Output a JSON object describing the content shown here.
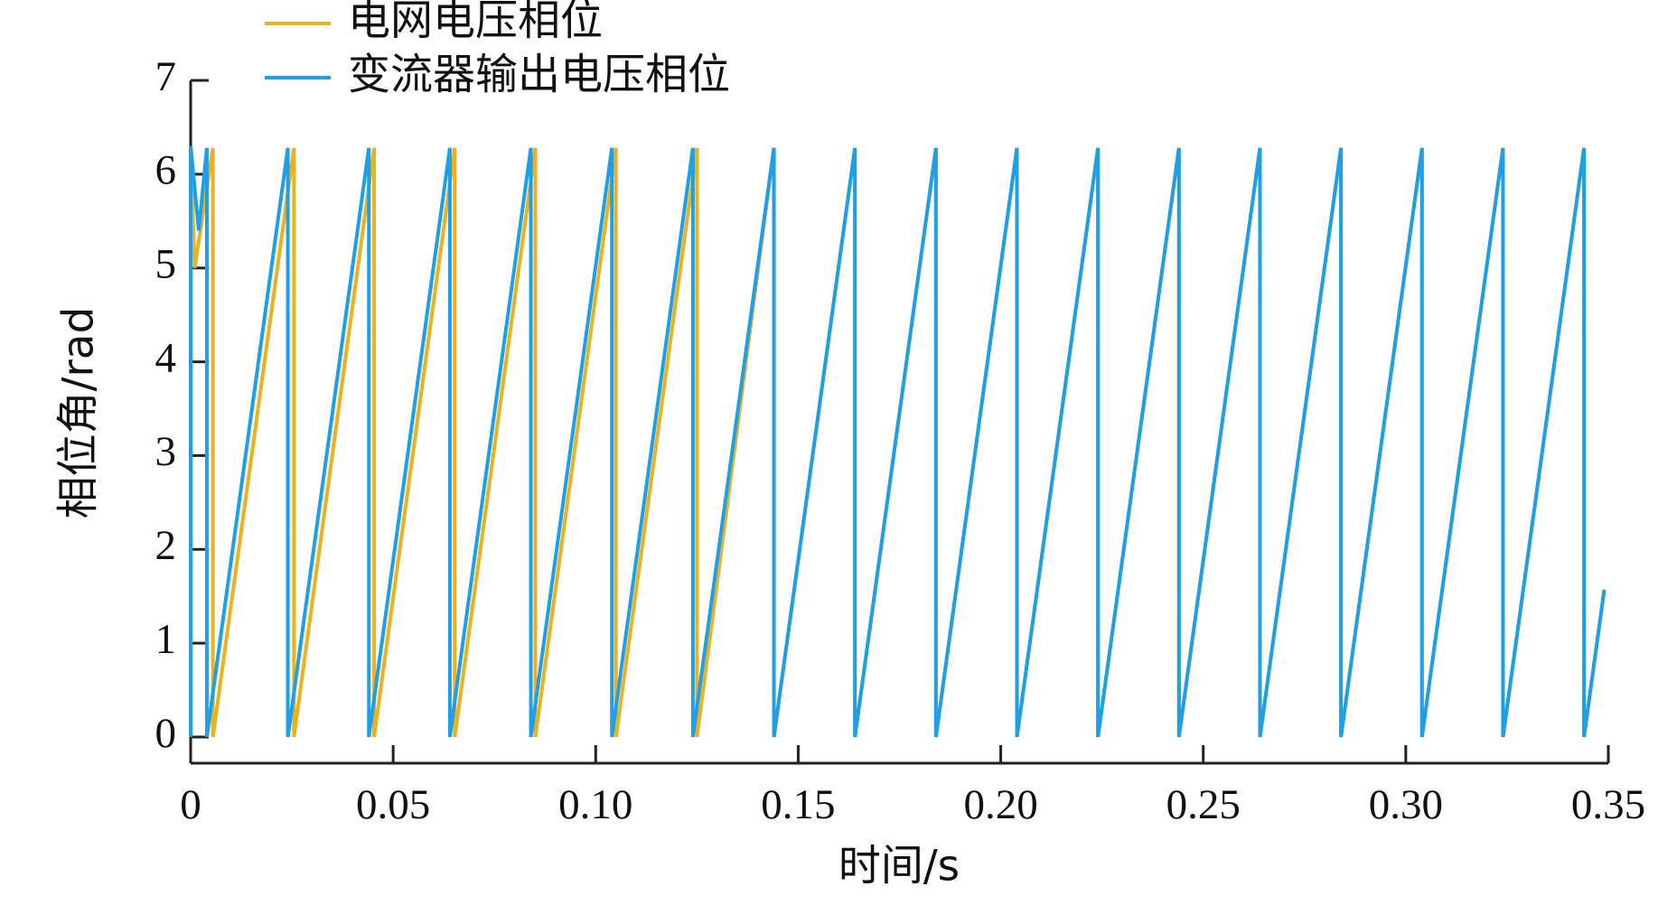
{
  "chart_data": {
    "type": "line",
    "x_label": "时间/s",
    "y_label": "相位角/rad",
    "xlim": [
      0,
      0.35
    ],
    "ylim": [
      0,
      7
    ],
    "xticks": [
      0,
      0.05,
      {
        "value": 0.1,
        "label": "0.10"
      },
      0.15,
      {
        "value": 0.2,
        "label": "0.20"
      },
      0.25,
      {
        "value": 0.3,
        "label": "0.30"
      },
      0.35
    ],
    "yticks": [
      0,
      1,
      2,
      3,
      4,
      5,
      6,
      7
    ],
    "grid": false,
    "legend": "top-left",
    "series": [
      {
        "name": "电网电压相位",
        "color": "#edb120",
        "x": [
          0,
          0.001,
          0.0055,
          0.0055,
          0.0255,
          0.0255,
          0.0453,
          0.0453,
          0.0652,
          0.0652,
          0.0851,
          0.0851,
          0.105,
          0.105,
          0.125,
          0.125,
          0.144,
          0.144,
          0.164,
          0.164,
          0.184,
          0.184,
          0.204,
          0.204,
          0.224,
          0.224,
          0.244,
          0.244,
          0.264,
          0.264,
          0.284,
          0.284,
          0.304,
          0.304,
          0.324,
          0.324,
          0.344,
          0.344,
          0.349
        ],
        "values": [
          6.28,
          5.0,
          6.28,
          0,
          6.28,
          0,
          6.28,
          0,
          6.28,
          0,
          6.28,
          0,
          6.28,
          0,
          6.28,
          0,
          6.28,
          0,
          6.28,
          0,
          6.28,
          0,
          6.28,
          0,
          6.28,
          0,
          6.28,
          0,
          6.28,
          0,
          6.28,
          0,
          6.28,
          0,
          6.28,
          0,
          6.28,
          0,
          1.57
        ]
      },
      {
        "name": "变流器输出电压相位",
        "color": "#1ea0e6",
        "x": [
          0,
          0,
          0.002,
          0.004,
          0.004,
          0.024,
          0.024,
          0.044,
          0.044,
          0.064,
          0.064,
          0.084,
          0.084,
          0.104,
          0.104,
          0.124,
          0.124,
          0.144,
          0.144,
          0.164,
          0.164,
          0.184,
          0.184,
          0.204,
          0.204,
          0.224,
          0.224,
          0.244,
          0.244,
          0.264,
          0.264,
          0.284,
          0.284,
          0.304,
          0.304,
          0.324,
          0.324,
          0.344,
          0.344,
          0.349
        ],
        "values": [
          0,
          6.3,
          5.4,
          6.28,
          0,
          6.28,
          0,
          6.28,
          0,
          6.28,
          0,
          6.28,
          0,
          6.28,
          0,
          6.28,
          0,
          6.28,
          0,
          6.28,
          0,
          6.28,
          0,
          6.28,
          0,
          6.28,
          0,
          6.28,
          0,
          6.28,
          0,
          6.28,
          0,
          6.28,
          0,
          6.28,
          0,
          6.28,
          0,
          1.57
        ]
      }
    ]
  }
}
